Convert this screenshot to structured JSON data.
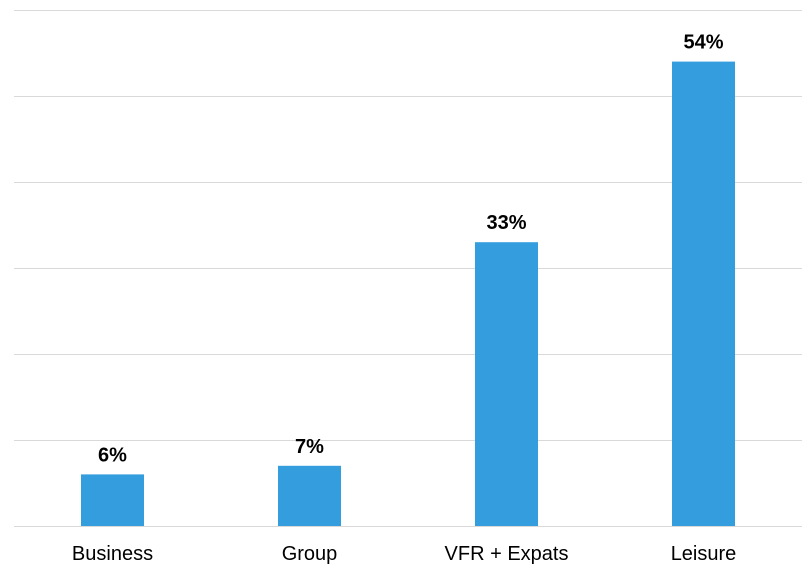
{
  "chart_data": {
    "type": "bar",
    "categories": [
      "Business",
      "Group",
      "VFR + Expats",
      "Leisure"
    ],
    "values": [
      6,
      7,
      33,
      54
    ],
    "value_labels": [
      "6%",
      "7%",
      "33%",
      "54%"
    ],
    "title": "",
    "xlabel": "",
    "ylabel": "",
    "ylim": [
      0,
      60
    ],
    "grid": true,
    "legend": "none",
    "bar_color": "#339ddd",
    "gridline_color": "#d9d9d9"
  }
}
